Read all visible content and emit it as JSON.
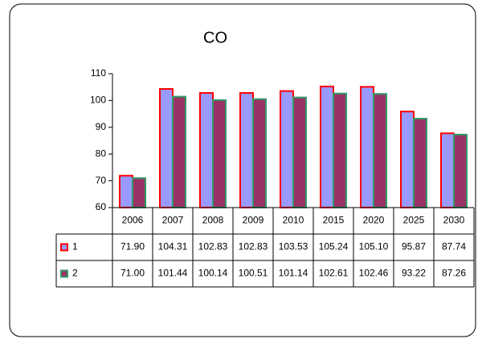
{
  "chart_data": {
    "type": "bar",
    "title": "CO",
    "categories": [
      "2006",
      "2007",
      "2008",
      "2009",
      "2010",
      "2015",
      "2020",
      "2025",
      "2030"
    ],
    "series": [
      {
        "name": "1",
        "color": "#9999ff",
        "edgecolor": "#ff0000",
        "values": [
          71.9,
          104.31,
          102.83,
          102.83,
          103.53,
          105.24,
          105.1,
          95.87,
          87.74
        ],
        "value_labels": [
          "71.90",
          "104.31",
          "102.83",
          "102.83",
          "103.53",
          "105.24",
          "105.10",
          "95.87",
          "87.74"
        ]
      },
      {
        "name": "2",
        "color": "#993366",
        "edgecolor": "#339966",
        "values": [
          71,
          101.44,
          100.14,
          100.51,
          101.14,
          102.61,
          102.46,
          93.22,
          87.26
        ],
        "value_labels": [
          "71.00",
          "101.44",
          "100.14",
          "100.51",
          "101.14",
          "102.61",
          "102.46",
          "93.22",
          "87.26"
        ]
      }
    ],
    "ylim": [
      60,
      110
    ],
    "yticks": [
      60,
      70,
      80,
      90,
      100,
      110
    ],
    "grid": false,
    "data_table": true
  }
}
